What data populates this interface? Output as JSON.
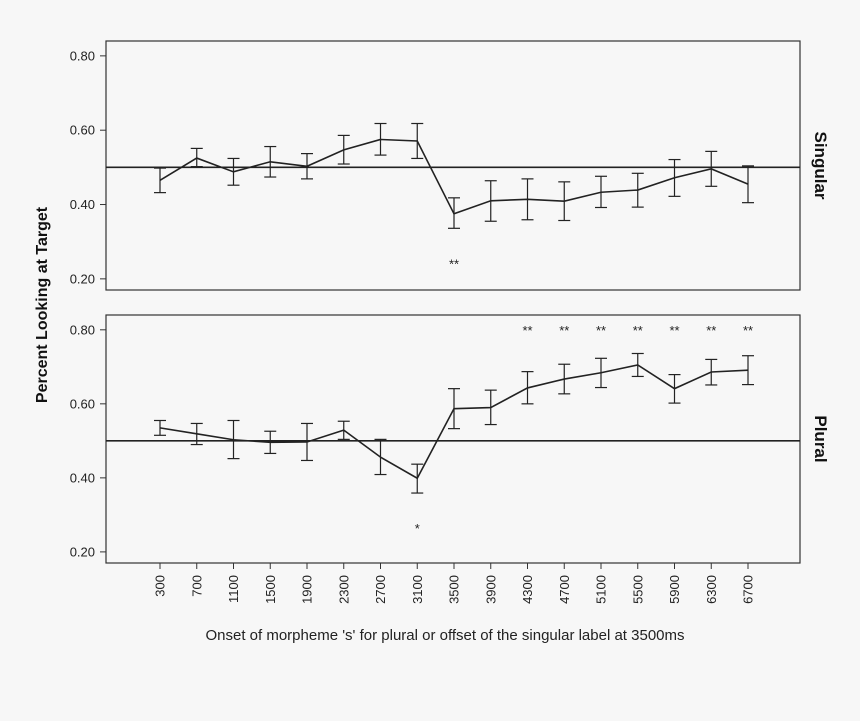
{
  "chart_data": {
    "type": "line",
    "ylabel": "Percent Looking at Target",
    "xlabel": "Onset of morpheme 's' for plural or offset of the singular label at 3500ms",
    "x": [
      300,
      700,
      1100,
      1500,
      1900,
      2300,
      2700,
      3100,
      3500,
      3900,
      4300,
      4700,
      5100,
      5500,
      5900,
      6300,
      6700
    ],
    "ylim": [
      0.17,
      0.84
    ],
    "yticks": [
      "0.20",
      "0.40",
      "0.60",
      "0.80"
    ],
    "reference_line": 0.5,
    "grid": false,
    "panels": [
      {
        "label": "Singular",
        "values": [
          0.465,
          0.525,
          0.488,
          0.515,
          0.503,
          0.547,
          0.575,
          0.571,
          0.375,
          0.41,
          0.414,
          0.409,
          0.433,
          0.439,
          0.472,
          0.496,
          0.455
        ],
        "err_low": [
          0.432,
          0.502,
          0.452,
          0.474,
          0.469,
          0.509,
          0.533,
          0.524,
          0.336,
          0.355,
          0.359,
          0.357,
          0.392,
          0.393,
          0.422,
          0.449,
          0.405
        ],
        "err_high": [
          0.498,
          0.551,
          0.524,
          0.556,
          0.537,
          0.586,
          0.618,
          0.618,
          0.418,
          0.464,
          0.469,
          0.461,
          0.476,
          0.484,
          0.521,
          0.543,
          0.504
        ],
        "significance": [
          {
            "x": 3500,
            "mark": "**"
          }
        ]
      },
      {
        "label": "Plural",
        "values": [
          0.535,
          0.519,
          0.503,
          0.496,
          0.497,
          0.529,
          0.456,
          0.399,
          0.587,
          0.59,
          0.643,
          0.667,
          0.684,
          0.705,
          0.641,
          0.686,
          0.691
        ],
        "err_low": [
          0.515,
          0.49,
          0.452,
          0.466,
          0.447,
          0.504,
          0.409,
          0.359,
          0.533,
          0.544,
          0.6,
          0.627,
          0.644,
          0.674,
          0.602,
          0.651,
          0.652
        ],
        "err_high": [
          0.555,
          0.547,
          0.555,
          0.526,
          0.547,
          0.553,
          0.504,
          0.437,
          0.641,
          0.637,
          0.687,
          0.707,
          0.723,
          0.736,
          0.679,
          0.72,
          0.73
        ],
        "significance": [
          {
            "x": 3100,
            "mark": "*"
          },
          {
            "x": 4300,
            "mark": "**"
          },
          {
            "x": 4700,
            "mark": "**"
          },
          {
            "x": 5100,
            "mark": "**"
          },
          {
            "x": 5500,
            "mark": "**"
          },
          {
            "x": 5900,
            "mark": "**"
          },
          {
            "x": 6300,
            "mark": "**"
          },
          {
            "x": 6700,
            "mark": "**"
          }
        ]
      }
    ]
  },
  "colors": {
    "line": "#222222",
    "frame": "#333333",
    "background": "#f7f7f7"
  }
}
